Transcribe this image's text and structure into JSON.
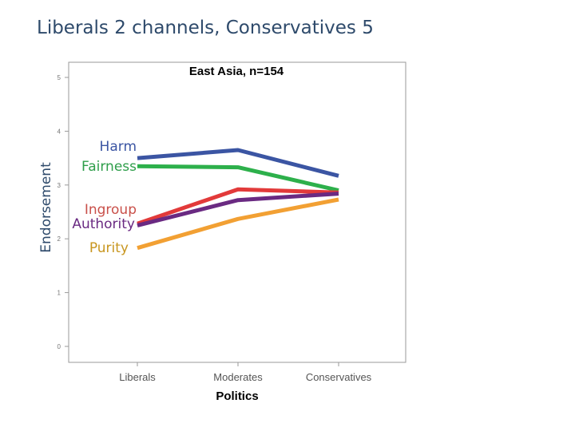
{
  "slide": {
    "title": "Liberals 2 channels, Conservatives 5",
    "ylabel": "Endorsement"
  },
  "colors": {
    "title": "#2e4a6b",
    "frame": "#9a9a9a",
    "tick_text": "#777777"
  },
  "chart_data": {
    "type": "line",
    "title": "East Asia, n=154",
    "xlabel": "Politics",
    "ylabel": "Endorsement",
    "categories": [
      "Liberals",
      "Moderates",
      "Conservatives"
    ],
    "ylim": [
      0,
      5
    ],
    "yticks": [
      "0",
      "1",
      "2",
      "3",
      "4",
      "5"
    ],
    "grid": false,
    "series": [
      {
        "name": "Harm",
        "color": "#3b55a3",
        "label_color": "#3b55a3",
        "values": [
          3.5,
          3.65,
          3.17
        ]
      },
      {
        "name": "Fairness",
        "color": "#2db04b",
        "label_color": "#2e9e4a",
        "values": [
          3.35,
          3.33,
          2.9
        ]
      },
      {
        "name": "Ingroup",
        "color": "#e23a3a",
        "label_color": "#c9504a",
        "values": [
          2.28,
          2.92,
          2.86
        ]
      },
      {
        "name": "Authority",
        "color": "#6a2a82",
        "label_color": "#6a2a82",
        "values": [
          2.25,
          2.72,
          2.84
        ]
      },
      {
        "name": "Purity",
        "color": "#f2a033",
        "label_color": "#c8961f",
        "values": [
          1.83,
          2.37,
          2.73
        ]
      }
    ]
  }
}
